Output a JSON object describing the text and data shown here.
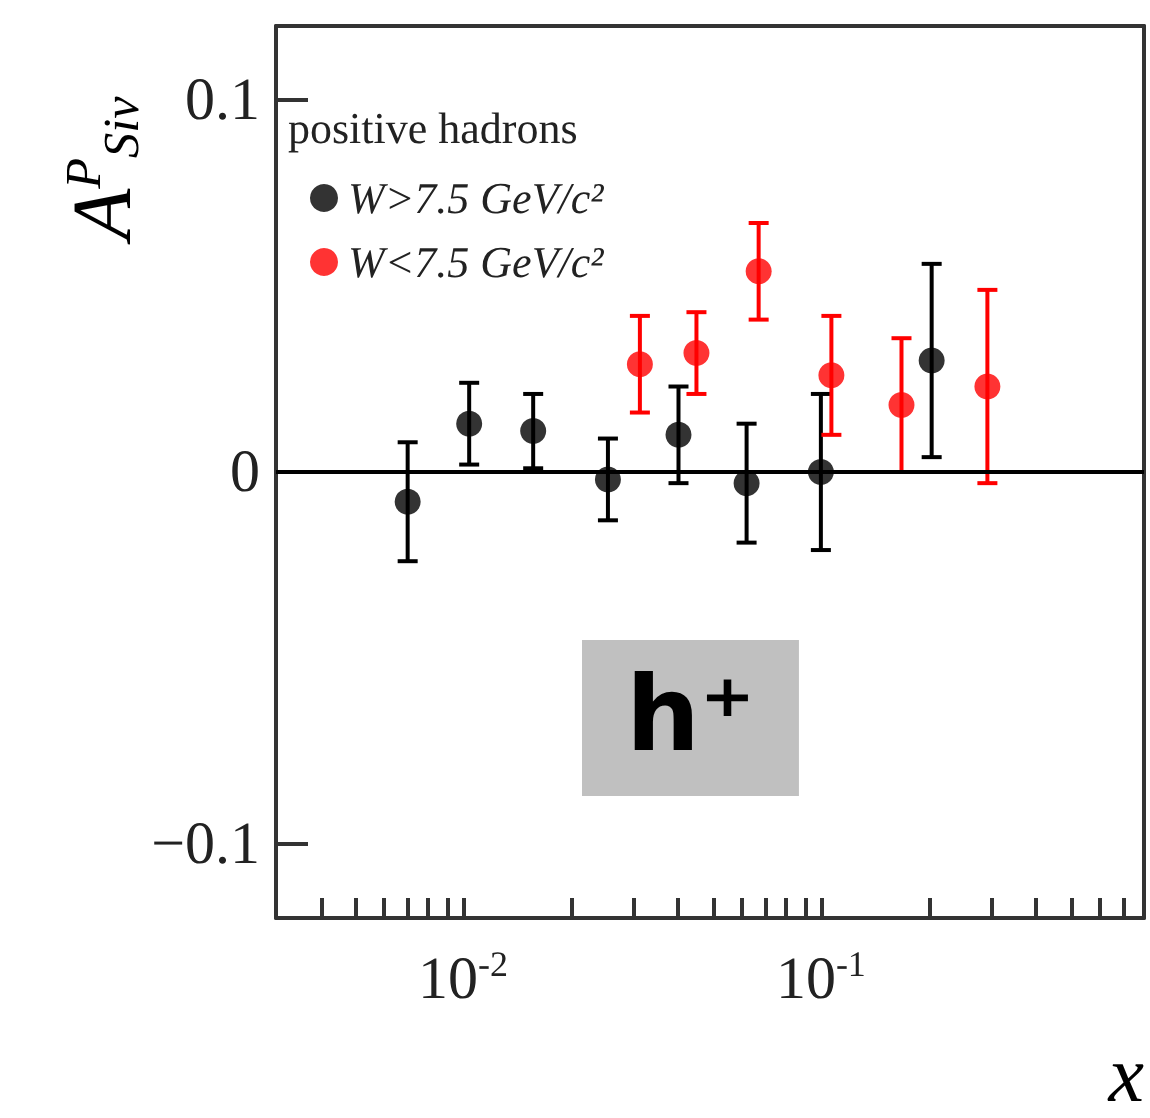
{
  "chart_data": {
    "type": "scatter",
    "ylabel": "A$^{P}$$_{Siv}$",
    "xlabel": "x",
    "legend_title": "positive hadrons",
    "series": [
      {
        "name": "W>7.5 GeV/c²",
        "color": "#000000",
        "x": [
          0.007,
          0.0104,
          0.0157,
          0.0254,
          0.04,
          0.062,
          0.1,
          0.204
        ],
        "values": [
          -0.008,
          0.013,
          0.011,
          -0.002,
          0.01,
          -0.003,
          0,
          0.03
        ],
        "errors": [
          0.016,
          0.011,
          0.01,
          0.011,
          0.013,
          0.016,
          0.021,
          0.026
        ]
      },
      {
        "name": "W<7.5 GeV/c²",
        "color": "#ff0000",
        "x": [
          0.0312,
          0.0449,
          0.067,
          0.107,
          0.168,
          0.292
        ],
        "values": [
          0.029,
          0.032,
          0.054,
          0.026,
          0.018,
          0.023
        ],
        "errors": [
          0.013,
          0.011,
          0.013,
          0.016,
          0.018,
          0.026
        ]
      }
    ],
    "log": "x",
    "marker": "circle",
    "legend": "top left",
    "grid": false,
    "xlim": [
      0.003,
      0.8
    ],
    "ylim": [
      -0.12,
      0.12
    ],
    "xticks": [
      {
        "value": 0.004,
        "label": null
      },
      {
        "value": 0.005,
        "label": null
      },
      {
        "value": 0.006,
        "label": null
      },
      {
        "value": 0.007,
        "label": null
      },
      {
        "value": 0.008,
        "label": null
      },
      {
        "value": 0.009,
        "label": null
      },
      {
        "value": 0.01,
        "label": "10$^{-2}$"
      },
      {
        "value": 0.02,
        "label": null
      },
      {
        "value": 0.03,
        "label": null
      },
      {
        "value": 0.04,
        "label": null
      },
      {
        "value": 0.05,
        "label": null
      },
      {
        "value": 0.06,
        "label": null
      },
      {
        "value": 0.07,
        "label": null
      },
      {
        "value": 0.08,
        "label": null
      },
      {
        "value": 0.09,
        "label": null
      },
      {
        "value": 0.1,
        "label": "10$^{-1}$"
      },
      {
        "value": 0.2,
        "label": null
      },
      {
        "value": 0.3,
        "label": null
      },
      {
        "value": 0.4,
        "label": null
      },
      {
        "value": 0.5,
        "label": null
      },
      {
        "value": 0.6,
        "label": null
      },
      {
        "value": 0.7,
        "label": null
      }
    ],
    "yticks": [
      {
        "value": -0.1,
        "label": "−0.1"
      },
      0,
      0.1
    ],
    "ref_lines": [
      {
        "axis": "y",
        "value": 0,
        "color": "#000000"
      }
    ],
    "annotations": [
      "h⁺"
    ]
  }
}
